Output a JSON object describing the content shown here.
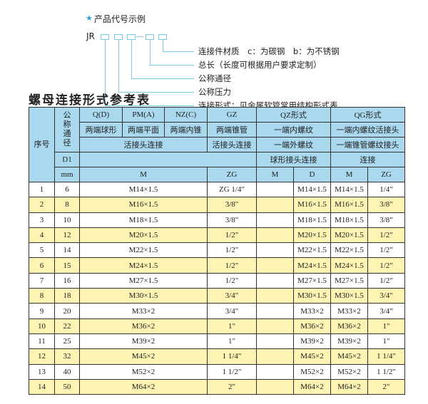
{
  "diagram": {
    "star_icon": "star-icon",
    "title": "产品代号示例",
    "code_prefix": "JR",
    "labels": [
      "连接件材质　c：为碳钢　b：为不锈钢",
      "总长（长度可根据用户要求定制）",
      "公称通径",
      "公称压力",
      "连接形式：见金属软管常用结构形式表"
    ]
  },
  "table_title": "螺母连接形式参考表",
  "colors": {
    "header": "#a9d8ef",
    "alt_row": "#fdf4b3",
    "line": "#7cc9e6"
  },
  "header": {
    "seq": "序号",
    "dn": "公称通径",
    "r1": [
      "Q(D)",
      "PM(A)",
      "NZ(C)",
      "GZ",
      "QZ形式",
      "QG形式"
    ],
    "r2": [
      "两端球形",
      "两端平面",
      "两端内锥",
      "两端锥管",
      "一端内螺纹",
      "一端内螺纹活接头"
    ],
    "r3": [
      "活接头连接",
      "活接头连接",
      "一端外螺纹",
      "一端锥管螺纹接头"
    ],
    "r4": [
      "D1",
      "",
      "球形接头连接",
      "连接"
    ],
    "r5": [
      "mm",
      "M",
      "ZG",
      "M",
      "D",
      "M",
      "ZG"
    ]
  },
  "rows": [
    {
      "seq": "1",
      "dn": "6",
      "m": "M14×1.5",
      "gz": "ZG 1/4\"",
      "qz_m": "",
      "qz_d": "M14×1.5",
      "qg_m": "M14×1.5",
      "qg_zg": "1/4\""
    },
    {
      "seq": "2",
      "dn": "8",
      "m": "M16×1.5",
      "gz": "3/8\"",
      "qz_m": "",
      "qz_d": "M16×1.5",
      "qg_m": "M16×1.5",
      "qg_zg": "3/8\""
    },
    {
      "seq": "3",
      "dn": "10",
      "m": "M18×1.5",
      "gz": "3/8\"",
      "qz_m": "",
      "qz_d": "M18×1.5",
      "qg_m": "M18×1.5",
      "qg_zg": "3/8\""
    },
    {
      "seq": "4",
      "dn": "12",
      "m": "M20×1.5",
      "gz": "1/2\"",
      "qz_m": "",
      "qz_d": "M20×1.5",
      "qg_m": "M20×1.5",
      "qg_zg": "1/2\""
    },
    {
      "seq": "5",
      "dn": "14",
      "m": "M22×1.5",
      "gz": "1/2\"",
      "qz_m": "",
      "qz_d": "M22×1.5",
      "qg_m": "M22×1.5",
      "qg_zg": "1/2\""
    },
    {
      "seq": "6",
      "dn": "15",
      "m": "M24×1.5",
      "gz": "1/2\"",
      "qz_m": "",
      "qz_d": "M24×1.5",
      "qg_m": "M24×1.5",
      "qg_zg": "1/2\""
    },
    {
      "seq": "7",
      "dn": "16",
      "m": "M27×1.5",
      "gz": "1/2\"",
      "qz_m": "",
      "qz_d": "M27×1.5",
      "qg_m": "M27×1.5",
      "qg_zg": "1/2\""
    },
    {
      "seq": "8",
      "dn": "18",
      "m": "M30×1.5",
      "gz": "3/4\"",
      "qz_m": "",
      "qz_d": "M30×1.5",
      "qg_m": "M30×1.5",
      "qg_zg": "3/4\""
    },
    {
      "seq": "9",
      "dn": "20",
      "m": "M33×2",
      "gz": "3/4\"",
      "qz_m": "",
      "qz_d": "M33×2",
      "qg_m": "M33×2",
      "qg_zg": "3/4\""
    },
    {
      "seq": "10",
      "dn": "22",
      "m": "M36×2",
      "gz": "1\"",
      "qz_m": "",
      "qz_d": "M36×2",
      "qg_m": "M36×2",
      "qg_zg": "1\""
    },
    {
      "seq": "11",
      "dn": "25",
      "m": "M39×2",
      "gz": "1\"",
      "qz_m": "",
      "qz_d": "M39×2",
      "qg_m": "M39×2",
      "qg_zg": "1\""
    },
    {
      "seq": "12",
      "dn": "32",
      "m": "M45×2",
      "gz": "1 1/4\"",
      "qz_m": "",
      "qz_d": "M45×2",
      "qg_m": "M45×2",
      "qg_zg": "1 1/4\""
    },
    {
      "seq": "13",
      "dn": "40",
      "m": "M52×2",
      "gz": "1 1/2\"",
      "qz_m": "",
      "qz_d": "M52×2",
      "qg_m": "M52×2",
      "qg_zg": "1 1/2\""
    },
    {
      "seq": "14",
      "dn": "50",
      "m": "M64×2",
      "gz": "2\"",
      "qz_m": "",
      "qz_d": "M64×2",
      "qg_m": "M64×2",
      "qg_zg": "2\""
    }
  ]
}
